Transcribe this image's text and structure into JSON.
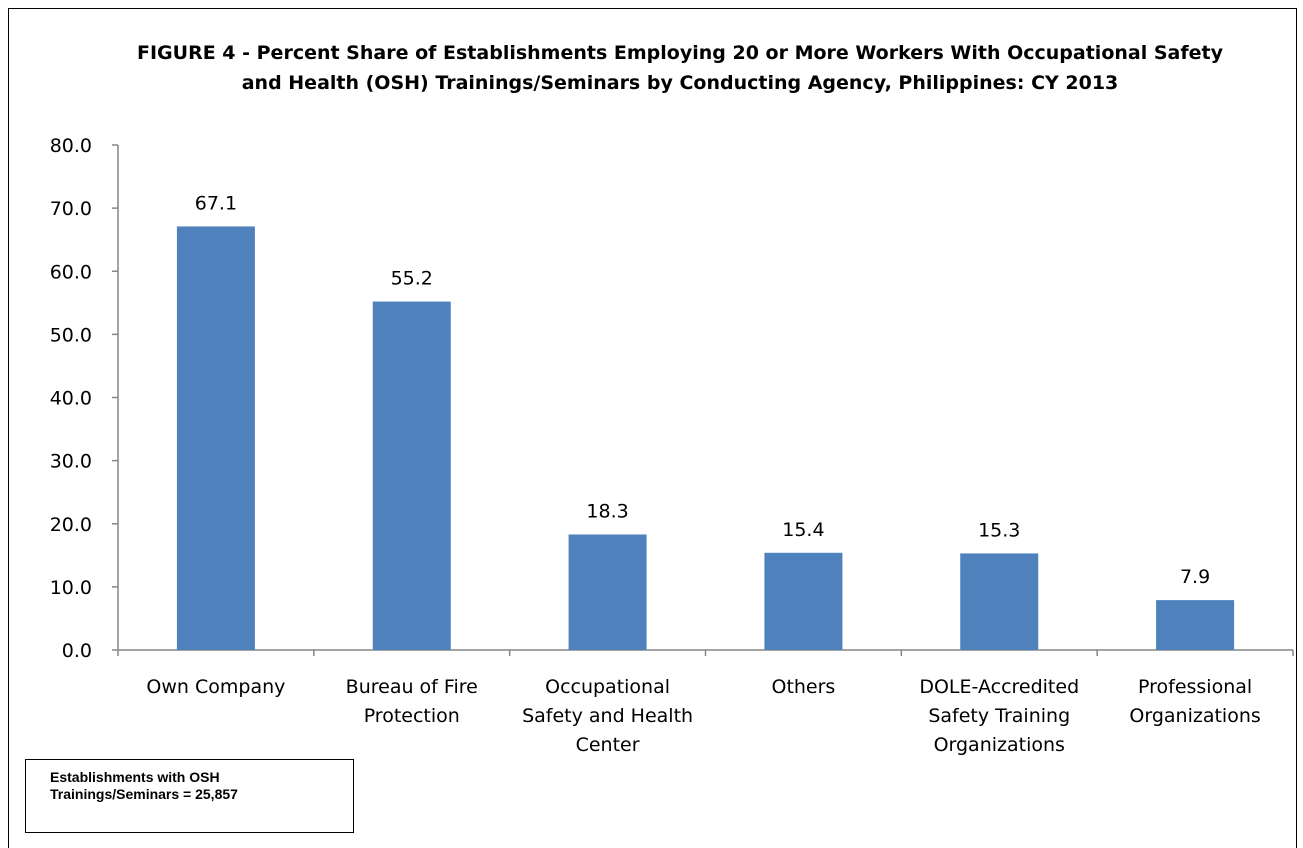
{
  "chart_data": {
    "type": "bar",
    "title_lines": [
      "FIGURE 4 - Percent Share of Establishments Employing 20 or More Workers With Occupational Safety",
      "and Health (OSH) Trainings/Seminars by Conducting Agency, Philippines:  CY 2013"
    ],
    "categories": [
      [
        "Own Company"
      ],
      [
        "Bureau of Fire",
        "Protection"
      ],
      [
        "Occupational",
        "Safety and Health",
        "Center"
      ],
      [
        "Others"
      ],
      [
        "DOLE-Accredited",
        "Safety Training",
        "Organizations"
      ],
      [
        "Professional",
        "Organizations"
      ]
    ],
    "values": [
      67.1,
      55.2,
      18.3,
      15.4,
      15.3,
      7.9
    ],
    "data_labels": [
      "67.1",
      "55.2",
      "18.3",
      "15.4",
      "15.3",
      "7.9"
    ],
    "yticks": [
      "0.0",
      "10.0",
      "20.0",
      "30.0",
      "40.0",
      "50.0",
      "60.0",
      "70.0",
      "80.0"
    ],
    "ylim": [
      0,
      80
    ],
    "grid": false,
    "bar_color": "#4F81BD",
    "xlabel": "",
    "ylabel": ""
  },
  "note": {
    "line1": "Establishments with OSH",
    "line2": "Trainings/Seminars = 25,857"
  }
}
